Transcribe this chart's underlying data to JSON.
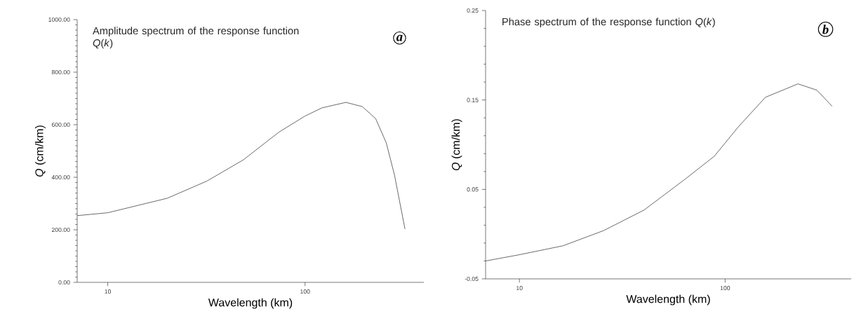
{
  "chart_data": [
    {
      "type": "line",
      "log": "x",
      "xlabel": "Wavelength (km)",
      "ylabel": "*Q* (cm/km)",
      "annotations": [
        "Amplitude spectrum of the response function *Q*(*k*)",
        "*a*"
      ],
      "xlim": [
        7,
        400
      ],
      "ylim": [
        0,
        1000
      ],
      "xticks": [
        10,
        100
      ],
      "yticks": [
        {
          "value": 0,
          "label": "0.00"
        },
        {
          "value": 200,
          "label": "200.00"
        },
        {
          "value": 400,
          "label": "400.00"
        },
        {
          "value": 600,
          "label": "600.00"
        },
        {
          "value": 800,
          "label": "800.00"
        },
        {
          "value": 1000,
          "label": "1000.00"
        }
      ],
      "series": [
        {
          "color": "#444444",
          "x": [
            7,
            10,
            20,
            31.7,
            48.6,
            73.8,
            100,
            121.7,
            161,
            195,
            228,
            258,
            284,
            321
          ],
          "values": [
            254,
            265,
            320,
            385,
            466,
            572,
            633,
            664,
            685,
            669,
            623,
            531,
            408,
            203
          ]
        }
      ]
    },
    {
      "type": "line",
      "log": "x",
      "xlabel": "Wavelength (km)",
      "ylabel": "*Q* (cm/km)",
      "annotations": [
        "Phase spectrum of the response function *Q*(*k*)",
        "*b*"
      ],
      "xlim": [
        6.85,
        410
      ],
      "ylim": [
        -0.05,
        0.25
      ],
      "xticks": [
        10,
        100
      ],
      "yticks": [
        -0.05,
        0.05,
        0.15,
        0.25
      ],
      "series": [
        {
          "color": "#444444",
          "x": [
            6.85,
            10,
            16.3,
            25.7,
            40.4,
            63.5,
            88.5,
            116,
            157,
            226,
            279,
            331
          ],
          "values": [
            -0.03,
            -0.023,
            -0.013,
            0.004,
            0.027,
            0.061,
            0.087,
            0.12,
            0.153,
            0.168,
            0.161,
            0.143
          ]
        }
      ]
    }
  ]
}
